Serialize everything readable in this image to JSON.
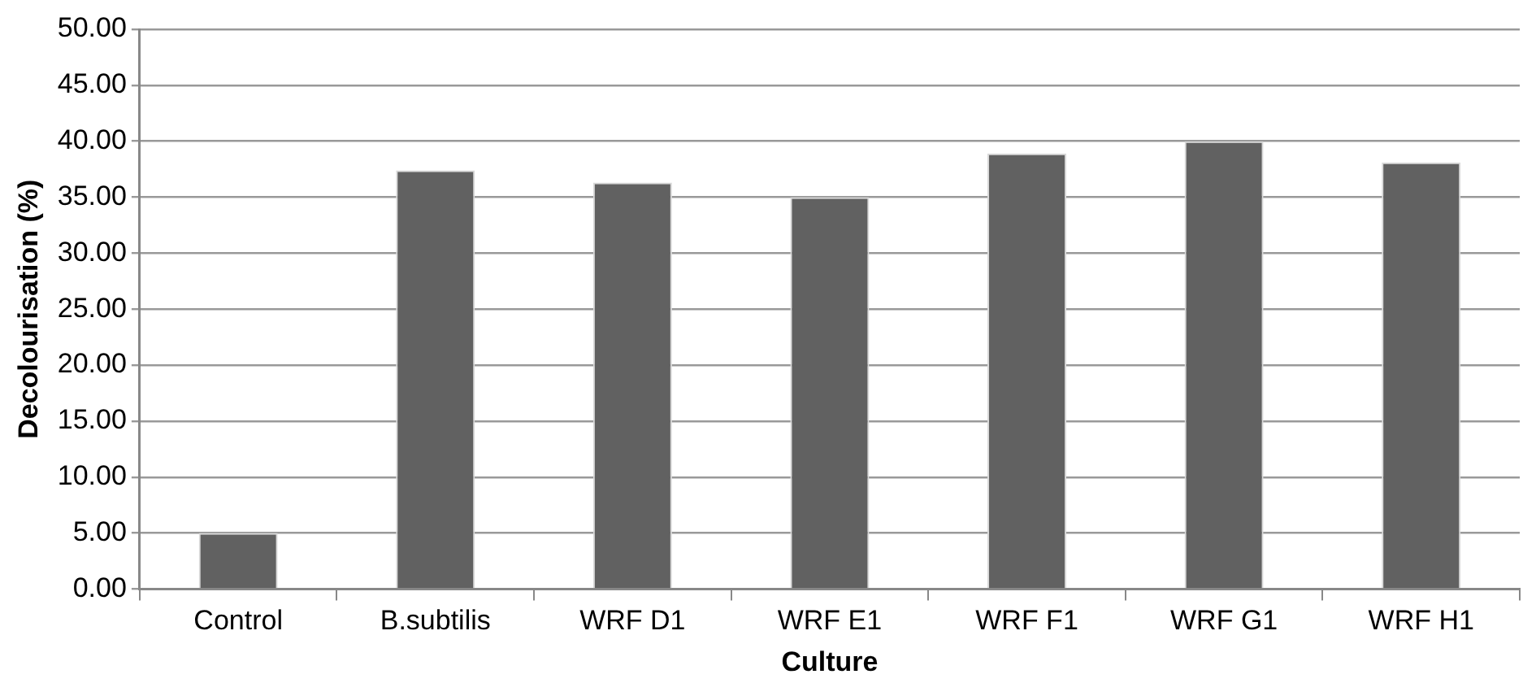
{
  "chart_data": {
    "type": "bar",
    "xlabel": "Culture",
    "ylabel": "Decolourisation (%)",
    "categories": [
      "Control",
      "B.subtilis",
      "WRF D1",
      "WRF E1",
      "WRF F1",
      "WRF G1",
      "WRF H1"
    ],
    "values": [
      5.0,
      37.4,
      36.3,
      35.0,
      38.9,
      40.0,
      38.1
    ],
    "color": "#616161",
    "ylim": [
      0,
      50
    ],
    "yticks": [
      {
        "value": 0,
        "label": "0.00"
      },
      {
        "value": 5,
        "label": "5.00"
      },
      {
        "value": 10,
        "label": "10.00"
      },
      {
        "value": 15,
        "label": "15.00"
      },
      {
        "value": 20,
        "label": "20.00"
      },
      {
        "value": 25,
        "label": "25.00"
      },
      {
        "value": 30,
        "label": "30.00"
      },
      {
        "value": 35,
        "label": "35.00"
      },
      {
        "value": 40,
        "label": "40.00"
      },
      {
        "value": 45,
        "label": "45.00"
      },
      {
        "value": 50,
        "label": "50.00"
      }
    ],
    "grid": "y",
    "legend": false
  }
}
